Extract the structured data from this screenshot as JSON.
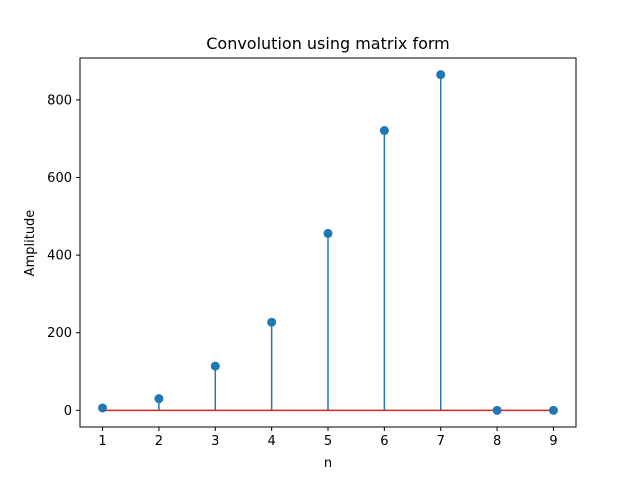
{
  "chart_data": {
    "type": "stem",
    "title": "Convolution using matrix form",
    "xlabel": "n",
    "ylabel": "Amplitude",
    "x": [
      1,
      2,
      3,
      4,
      5,
      6,
      7,
      8,
      9
    ],
    "y": [
      6,
      30,
      114,
      227,
      456,
      721,
      865,
      0,
      0
    ],
    "xlim": [
      0.6,
      9.4
    ],
    "ylim": [
      -43,
      908
    ],
    "xticks": [
      1,
      2,
      3,
      4,
      5,
      6,
      7,
      8,
      9
    ],
    "yticks": [
      0,
      200,
      400,
      600,
      800
    ],
    "grid": false,
    "legend": "none",
    "colors": {
      "marker": "#1f77b4",
      "stem": "#1f77b4",
      "baseline": "#d62728",
      "axes": "#000000"
    }
  }
}
